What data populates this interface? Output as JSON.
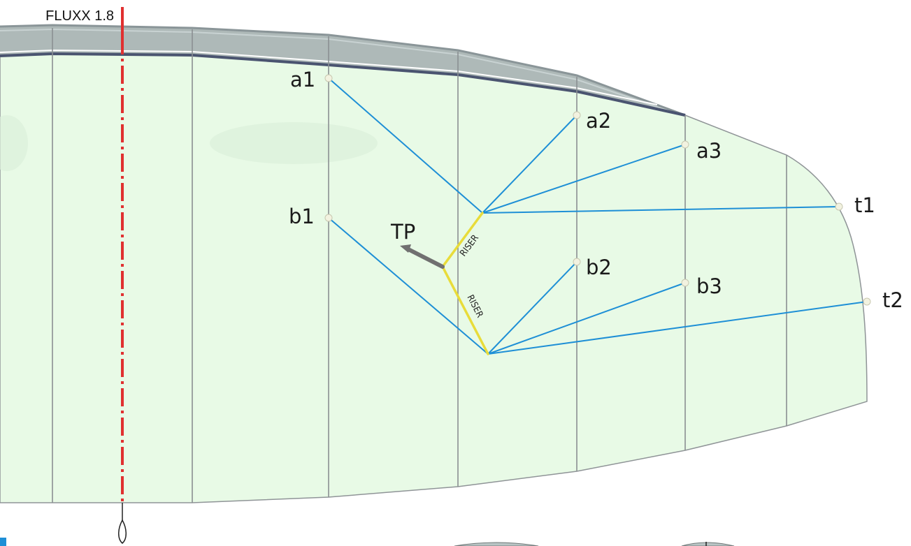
{
  "title": "FLUXX 1.8",
  "labels": {
    "a1": "a1",
    "a2": "a2",
    "a3": "a3",
    "b1": "b1",
    "b2": "b2",
    "b3": "b3",
    "t1": "t1",
    "t2": "t2",
    "tp": "TP",
    "riser_upper": "RISER",
    "riser_lower": "RISER"
  },
  "colors": {
    "canopy_fill": "#e8fae6",
    "leading_edge_band": "#aeb9b8",
    "leading_edge_dark": "#4a5470",
    "rib_lines": "#8a8f92",
    "bridle_lines": "#1e8fd6",
    "riser": "#e8dc3a",
    "centerline": "#e03030",
    "tow_point": "#707070"
  }
}
